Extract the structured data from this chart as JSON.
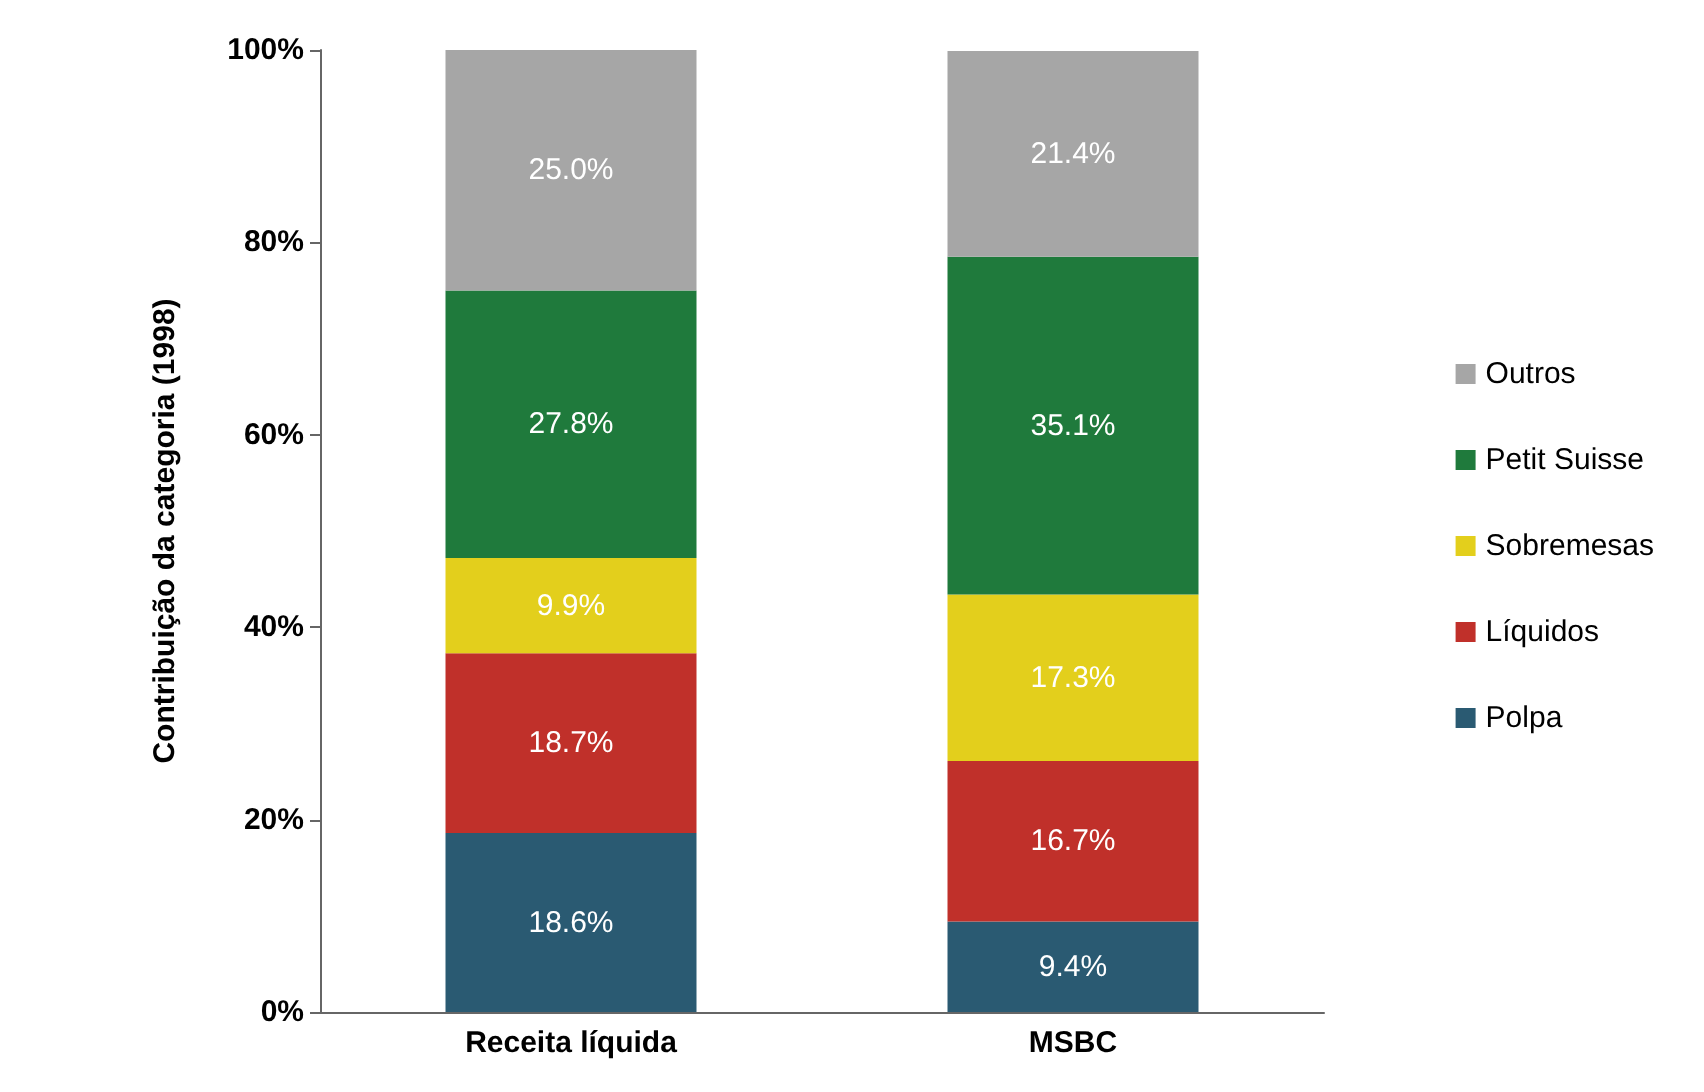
{
  "chart_data": {
    "type": "bar",
    "stacked": true,
    "ylabel": "Contribuição da categoria (1998)",
    "categories": [
      "Receita líquida",
      "MSBC"
    ],
    "series": [
      {
        "name": "Polpa",
        "color": "#2a5a72",
        "values": [
          18.6,
          9.4
        ],
        "value_labels": [
          "18.6%",
          "9.4%"
        ]
      },
      {
        "name": "Líquidos",
        "color": "#c0302a",
        "values": [
          18.7,
          16.7
        ],
        "value_labels": [
          "18.7%",
          "16.7%"
        ]
      },
      {
        "name": "Sobremesas",
        "color": "#e3cf1c",
        "values": [
          9.9,
          17.3
        ],
        "value_labels": [
          "9.9%",
          "17.3%"
        ]
      },
      {
        "name": "Petit Suisse",
        "color": "#1f7a3c",
        "values": [
          27.8,
          35.1
        ],
        "value_labels": [
          "27.8%",
          "35.1%"
        ]
      },
      {
        "name": "Outros",
        "color": "#a6a6a6",
        "values": [
          25.0,
          21.4
        ],
        "value_labels": [
          "25.0%",
          "21.4%"
        ]
      }
    ],
    "ylim": [
      0,
      100
    ],
    "yticks": [
      {
        "value": 0,
        "label": "0%"
      },
      {
        "value": 20,
        "label": "20%"
      },
      {
        "value": 40,
        "label": "40%"
      },
      {
        "value": 60,
        "label": "60%"
      },
      {
        "value": 80,
        "label": "80%"
      },
      {
        "value": 100,
        "label": "100%"
      }
    ],
    "grid": false,
    "legend": "right"
  }
}
